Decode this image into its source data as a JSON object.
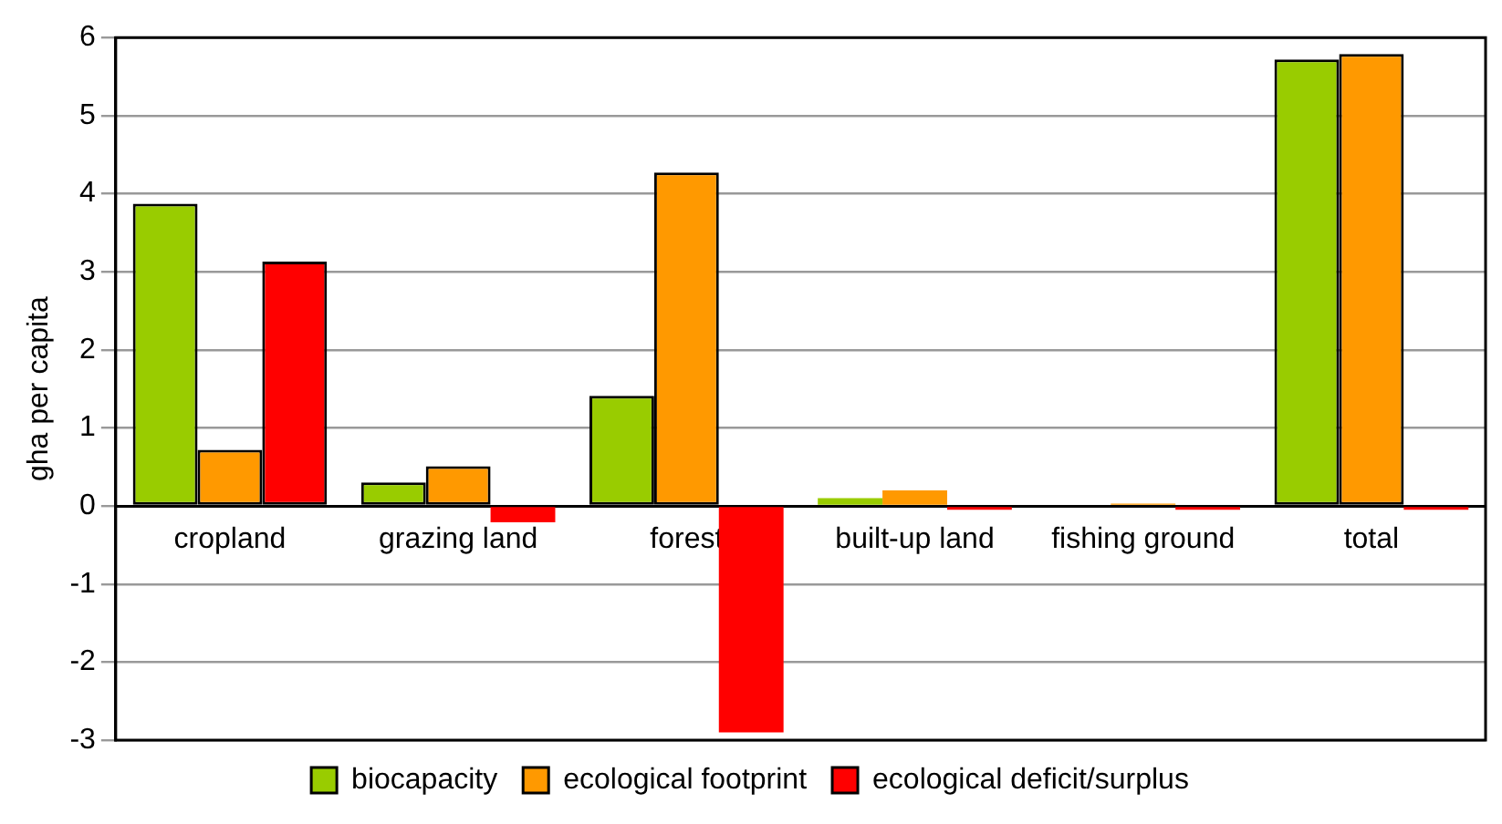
{
  "chart_data": {
    "type": "bar",
    "ylabel": "gha per capita",
    "categories": [
      "cropland",
      "grazing land",
      "forest",
      "built-up land",
      "fishing ground",
      "total"
    ],
    "series": [
      {
        "name": "biocapacity",
        "color": "#99cc00",
        "values": [
          3.87,
          0.3,
          1.41,
          0.1,
          0,
          5.72
        ]
      },
      {
        "name": "ecological footprint",
        "color": "#ff9900",
        "values": [
          0.72,
          0.51,
          4.27,
          0.2,
          0.03,
          5.79
        ]
      },
      {
        "name": "ecological deficit/surplus",
        "color": "#ff0000",
        "values": [
          3.13,
          -0.21,
          -2.9,
          -0.05,
          -0.05,
          -0.05
        ]
      }
    ],
    "ylim": [
      -3,
      6
    ],
    "yticks": [
      -3,
      -2,
      -1,
      0,
      1,
      2,
      3,
      4,
      5,
      6
    ],
    "grid": "y",
    "legend": "bottom"
  }
}
